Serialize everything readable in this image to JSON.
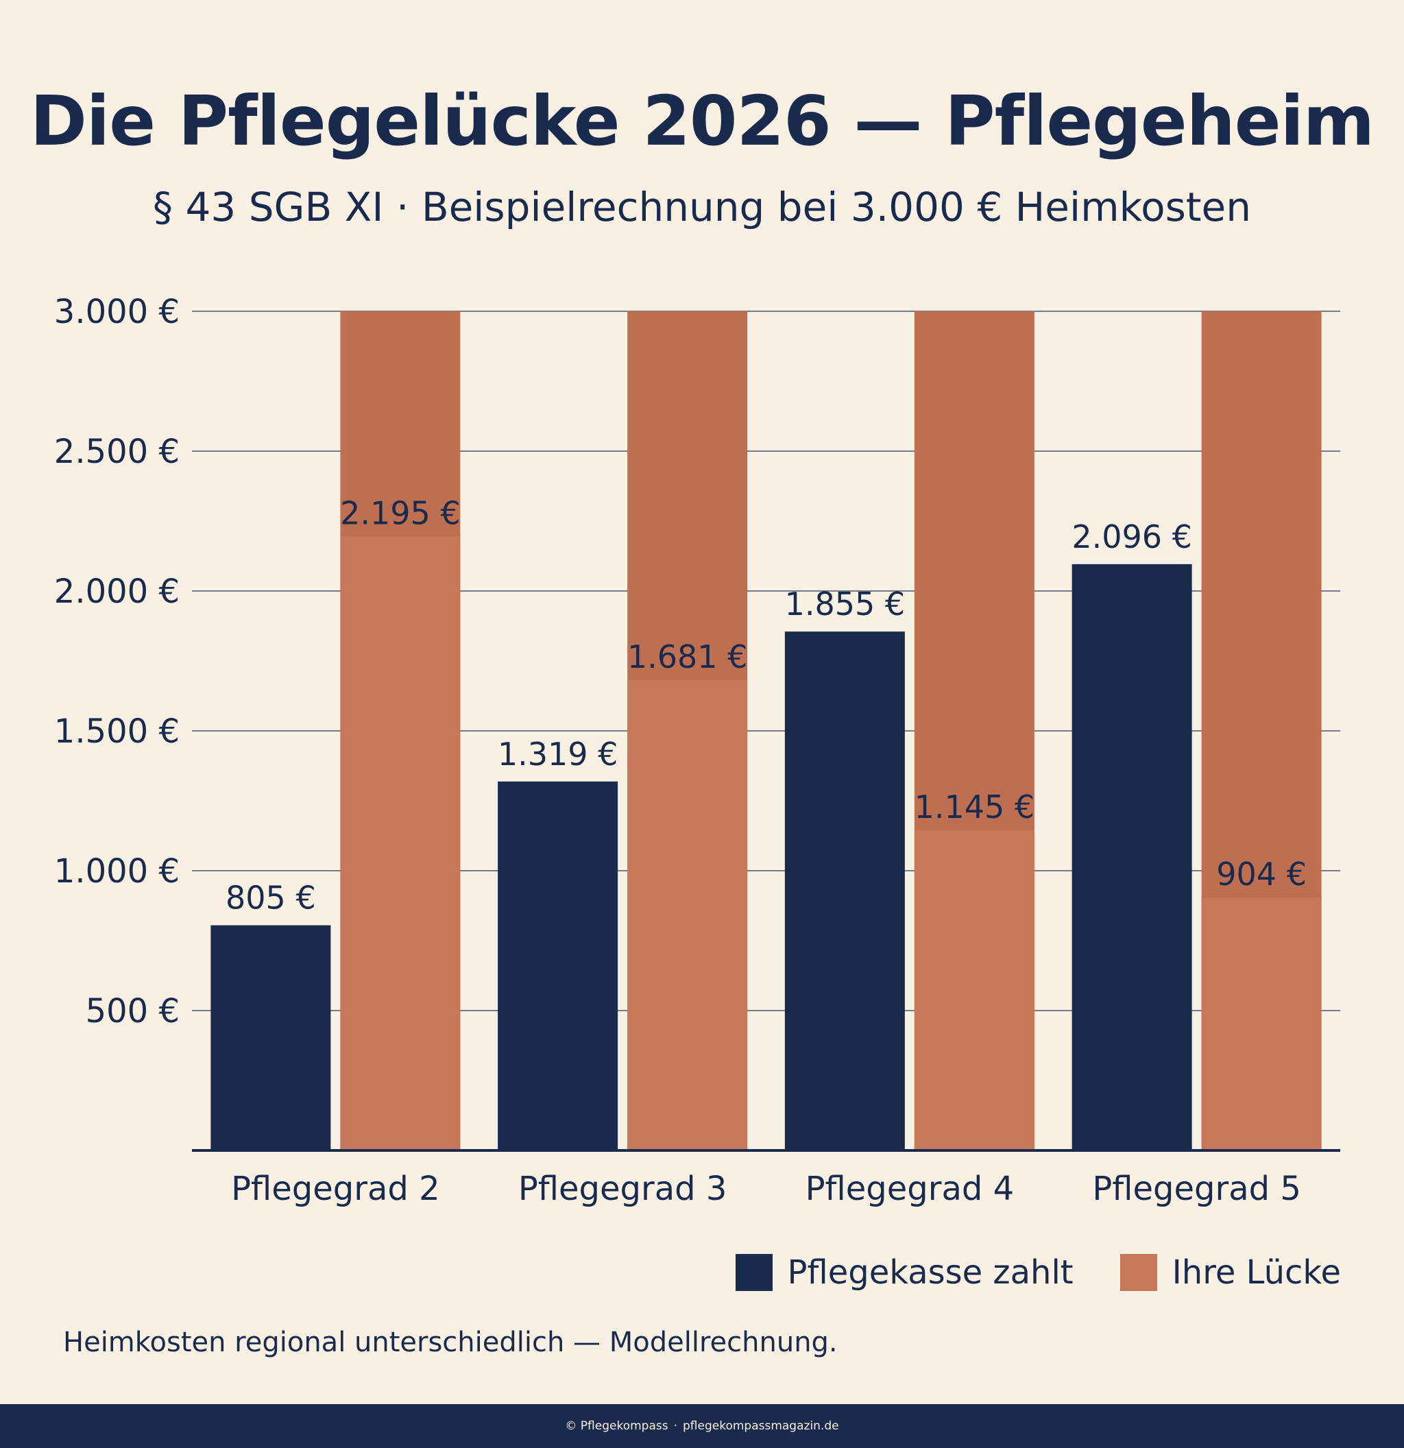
{
  "header": {
    "title": "Die Pflegelücke 2026 — Pflegeheim",
    "subtitle": "§ 43 SGB XI · Beispielrechnung bei 3.000 € Heimkosten"
  },
  "chart_data": {
    "type": "bar",
    "categories": [
      "Pflegegrad 2",
      "Pflegegrad 3",
      "Pflegegrad 4",
      "Pflegegrad 5"
    ],
    "series": [
      {
        "name": "Pflegekasse zahlt",
        "values": [
          805,
          1319,
          1855,
          2096
        ],
        "labels": [
          "805 €",
          "1.319 €",
          "1.855 €",
          "2.096 €"
        ],
        "color": "#1a2a4c"
      },
      {
        "name": "Ihre Lücke",
        "values": [
          2195,
          1681,
          1145,
          904
        ],
        "labels": [
          "2.195 €",
          "1.681 €",
          "1.145 €",
          "904 €"
        ],
        "color": "#c8785a"
      }
    ],
    "total_cost": 3000,
    "total_bar_color": "#bf6f51",
    "ylim": [
      0,
      3000
    ],
    "yticks": [
      500,
      1000,
      1500,
      2000,
      2500,
      3000
    ],
    "ytick_labels": [
      "500 €",
      "1.000 €",
      "1.500 €",
      "2.000 €",
      "2.500 €",
      "3.000 €"
    ],
    "grid": true,
    "legend_position": "bottom-right"
  },
  "footnote": "Heimkosten regional unterschiedlich — Modellrechnung.",
  "footer": {
    "brand": "© Pflegekompass",
    "separator": "·",
    "website": "pflegekompassmagazin.de"
  },
  "colors": {
    "background": "#f8f0e2",
    "navy": "#1a2a4c",
    "terracotta": "#c8785a"
  }
}
